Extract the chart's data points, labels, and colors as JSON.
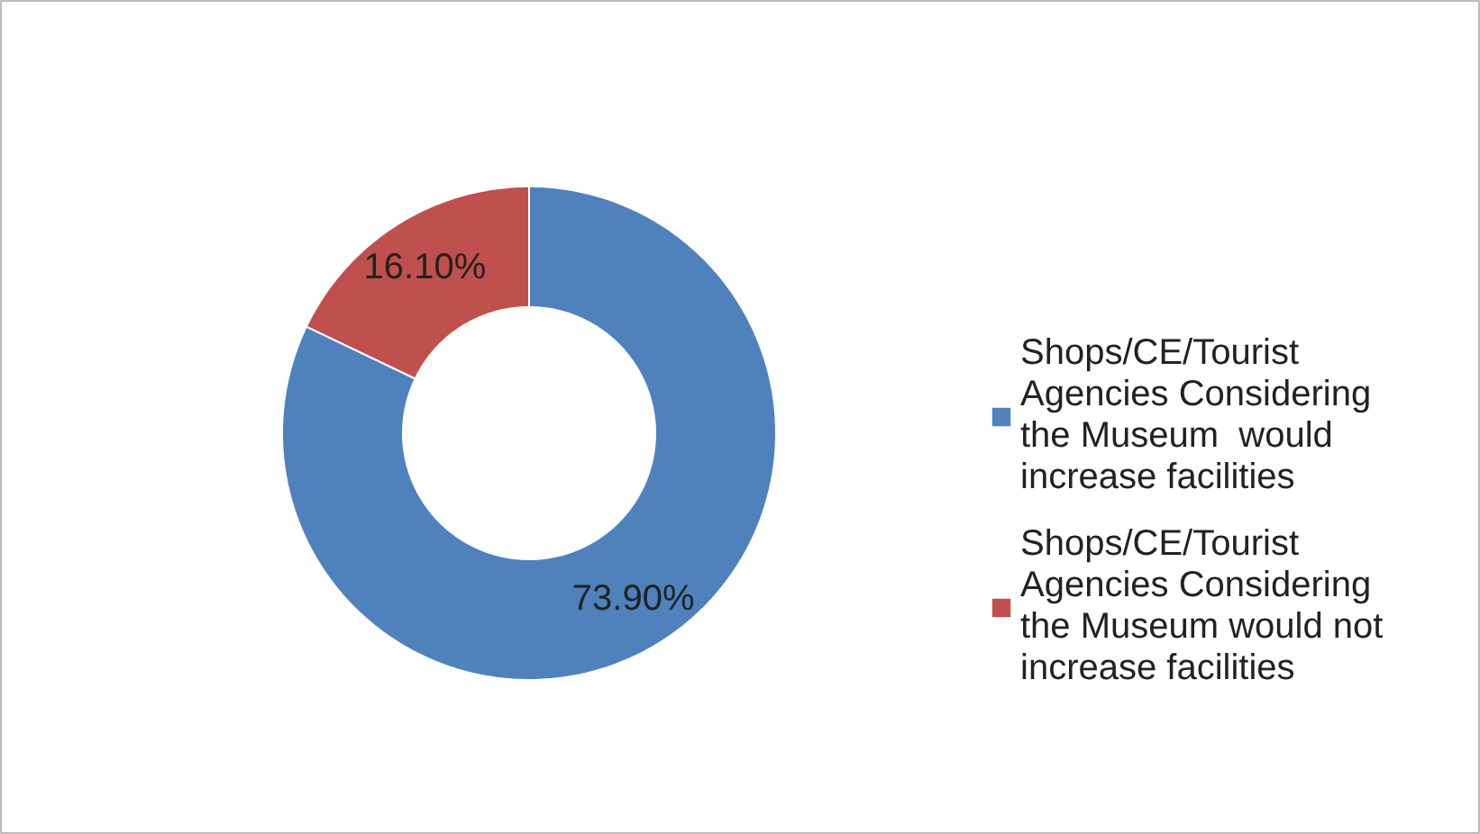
{
  "chart_data": {
    "type": "donut",
    "categories": [
      "Shops/CE/Tourist Agencies Considering the Museum  would increase facilities",
      "Shops/CE/Tourist Agencies Considering the Museum would not increase facilities"
    ],
    "values": [
      73.9,
      16.1
    ],
    "colors": [
      "#4f81bd",
      "#c0504d"
    ],
    "value_labels": [
      "73.90%",
      "16.10%"
    ],
    "legend": "right"
  }
}
